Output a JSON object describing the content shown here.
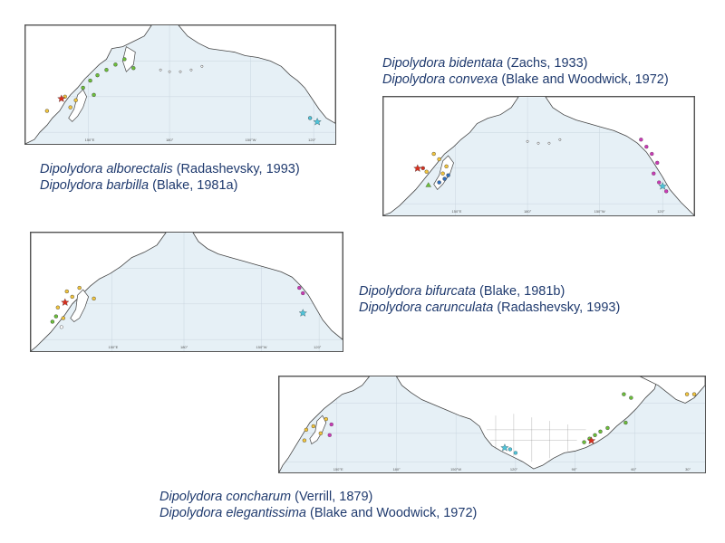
{
  "captions": {
    "map1": [
      {
        "species": "Dipolydora alborectalis",
        "authority": "(Radashevsky, 1993)"
      },
      {
        "species": "Dipolydora barbilla",
        "authority": "(Blake, 1981a)"
      }
    ],
    "map2": [
      {
        "species": "Dipolydora bidentata",
        "authority": "(Zachs, 1933)"
      },
      {
        "species": "Dipolydora convexa",
        "authority": "(Blake and Woodwick, 1972)"
      }
    ],
    "map3": [
      {
        "species": "Dipolydora bifurcata",
        "authority": "(Blake, 1981b)"
      },
      {
        "species": "Dipolydora carunculata",
        "authority": "(Radashevsky, 1993)"
      }
    ],
    "map4": [
      {
        "species": "Dipolydora concharum",
        "authority": "(Verrill, 1879)"
      },
      {
        "species": "Dipolydora elegantissima",
        "authority": "(Blake and Woodwick, 1972)"
      }
    ]
  },
  "lon_labels": {
    "pacific": [
      "150°E",
      "180°",
      "150°W",
      "120°"
    ],
    "wide": [
      "150°E",
      "180°",
      "150°W",
      "120°",
      "90°",
      "60°",
      "30°"
    ]
  },
  "colors": {
    "ocean": "#e6f0f6",
    "land": "#ffffff",
    "coast": "#444444",
    "caption": "#1f3a6e",
    "green": "#6cbf3a",
    "yellow": "#f2c53d",
    "red": "#d7301f",
    "cyan": "#4fc3d9",
    "magenta": "#c93bb5",
    "blue": "#2f6fbf"
  }
}
